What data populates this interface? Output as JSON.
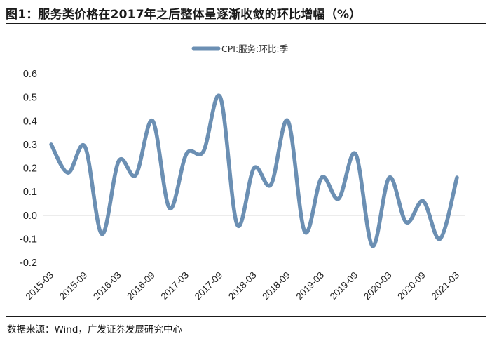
{
  "title": "图1：服务类价格在2017年之后整体呈逐渐收敛的环比增幅（%）",
  "source": "数据来源：Wind，广发证券发展研究中心",
  "chart_data": {
    "type": "line",
    "series": [
      {
        "name": "CPI:服务:环比:季",
        "color": "#6b8fb3",
        "values": [
          0.3,
          0.18,
          0.29,
          -0.08,
          0.23,
          0.17,
          0.4,
          0.03,
          0.26,
          0.27,
          0.5,
          -0.04,
          0.2,
          0.13,
          0.4,
          -0.07,
          0.16,
          0.07,
          0.26,
          -0.13,
          0.16,
          -0.03,
          0.06,
          -0.1,
          0.16
        ]
      }
    ],
    "x": [
      "2015-03",
      "2015-06",
      "2015-09",
      "2015-12",
      "2016-03",
      "2016-06",
      "2016-09",
      "2016-12",
      "2017-03",
      "2017-06",
      "2017-09",
      "2017-12",
      "2018-03",
      "2018-06",
      "2018-09",
      "2018-12",
      "2019-03",
      "2019-06",
      "2019-09",
      "2019-12",
      "2020-03",
      "2020-06",
      "2020-09",
      "2020-12",
      "2021-03"
    ],
    "x_tick_labels": [
      "2015-03",
      "2015-09",
      "2016-03",
      "2016-09",
      "2017-03",
      "2017-09",
      "2018-03",
      "2018-09",
      "2019-03",
      "2019-09",
      "2020-03",
      "2020-09",
      "2021-03"
    ],
    "y_ticks": [
      "0.6",
      "0.5",
      "0.4",
      "0.3",
      "0.2",
      "0.1",
      "0.0",
      "-0.1",
      "-0.2"
    ],
    "ylim": [
      -0.2,
      0.6
    ],
    "grid": false,
    "legend_position": "top-center",
    "xlabel": "",
    "ylabel": ""
  }
}
